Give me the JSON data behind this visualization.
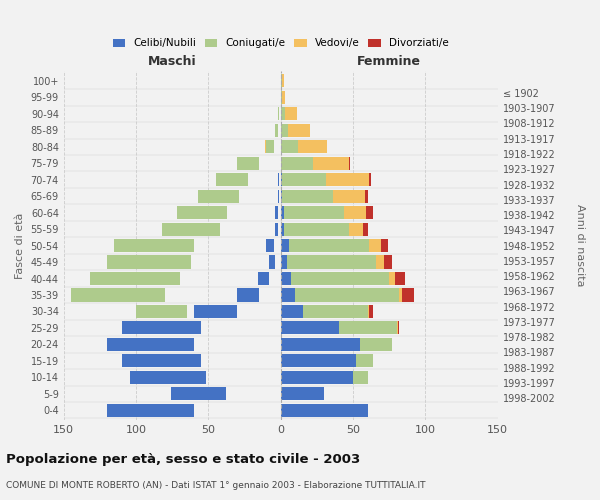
{
  "age_groups": [
    "0-4",
    "5-9",
    "10-14",
    "15-19",
    "20-24",
    "25-29",
    "30-34",
    "35-39",
    "40-44",
    "45-49",
    "50-54",
    "55-59",
    "60-64",
    "65-69",
    "70-74",
    "75-79",
    "80-84",
    "85-89",
    "90-94",
    "95-99",
    "100+"
  ],
  "birth_years": [
    "1998-2002",
    "1993-1997",
    "1988-1992",
    "1983-1987",
    "1978-1982",
    "1973-1977",
    "1968-1972",
    "1963-1967",
    "1958-1962",
    "1953-1957",
    "1948-1952",
    "1943-1947",
    "1938-1942",
    "1933-1937",
    "1928-1932",
    "1923-1927",
    "1918-1922",
    "1913-1917",
    "1908-1912",
    "1903-1907",
    "≤ 1902"
  ],
  "maschi": {
    "celibe": [
      60,
      38,
      52,
      55,
      60,
      55,
      30,
      15,
      8,
      4,
      5,
      2,
      2,
      1,
      1,
      0,
      0,
      0,
      0,
      0,
      0
    ],
    "coniugato": [
      0,
      0,
      2,
      2,
      8,
      12,
      35,
      65,
      62,
      58,
      55,
      40,
      35,
      28,
      22,
      15,
      5,
      2,
      1,
      0,
      0
    ],
    "vedovo": [
      0,
      0,
      0,
      0,
      0,
      1,
      1,
      2,
      3,
      3,
      4,
      4,
      5,
      8,
      8,
      7,
      3,
      1,
      0,
      0,
      0
    ],
    "divorziato": [
      0,
      0,
      0,
      0,
      0,
      1,
      2,
      5,
      6,
      5,
      4,
      3,
      5,
      2,
      1,
      1,
      0,
      0,
      0,
      0,
      0
    ]
  },
  "femmine": {
    "nubile": [
      60,
      30,
      50,
      52,
      55,
      40,
      15,
      10,
      7,
      4,
      6,
      2,
      2,
      1,
      1,
      0,
      0,
      0,
      0,
      0,
      0
    ],
    "coniugata": [
      0,
      0,
      10,
      12,
      22,
      40,
      45,
      72,
      68,
      62,
      55,
      45,
      42,
      35,
      30,
      22,
      12,
      5,
      3,
      1,
      1
    ],
    "vedova": [
      0,
      0,
      0,
      0,
      0,
      1,
      1,
      2,
      4,
      5,
      8,
      10,
      15,
      22,
      30,
      25,
      20,
      15,
      8,
      2,
      1
    ],
    "divorziata": [
      0,
      0,
      0,
      0,
      0,
      1,
      3,
      8,
      7,
      6,
      5,
      3,
      5,
      2,
      1,
      1,
      0,
      0,
      0,
      0,
      0
    ]
  },
  "colors": {
    "celibe_nubile": "#4472C4",
    "coniugato_a": "#AECB8C",
    "vedovo_a": "#F4C060",
    "divorziato_a": "#C0312B"
  },
  "xlim": 150,
  "title": "Popolazione per età, sesso e stato civile - 2003",
  "subtitle": "COMUNE DI MONTE ROBERTO (AN) - Dati ISTAT 1° gennaio 2003 - Elaborazione TUTTITALIA.IT",
  "ylabel_left": "Fasce di età",
  "ylabel_right": "Anni di nascita",
  "xlabel_maschi": "Maschi",
  "xlabel_femmine": "Femmine",
  "bg_color": "#f2f2f2",
  "grid_color": "#cccccc"
}
